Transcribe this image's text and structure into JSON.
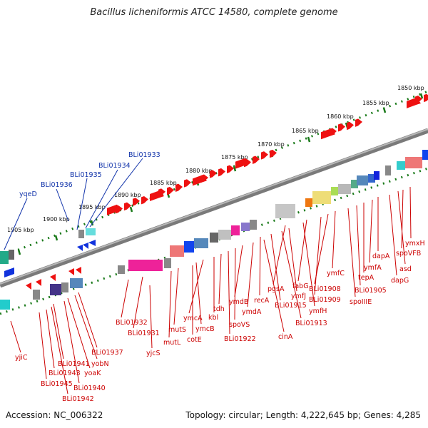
{
  "title": "Bacillus licheniformis ATCC 14580, complete genome",
  "footer": {
    "accession": "Accession: NC_006322",
    "topology": "Topology: circular; Length: 4,222,645 bp; Genes: 4,285"
  },
  "scale_labels": [
    "1850 kbp",
    "1855 kbp",
    "1860 kbp",
    "1865 kbp",
    "1870 kbp",
    "1875 kbp",
    "1880 kbp",
    "1885 kbp",
    "1890 kbp",
    "1895 kbp",
    "1900 kbp",
    "1905 kbp"
  ],
  "top_gene_labels": [
    "BLi01933",
    "BLi01934",
    "BLi01935",
    "BLi01936",
    "yqeD"
  ],
  "bottom_gene_labels": [
    "ymxH",
    "spoVFB",
    "asd",
    "dapG",
    "dapA",
    "ymfA",
    "tepA",
    "BLi01905",
    "spoIIIE",
    "ymfC",
    "BLi01908",
    "BLi01909",
    "fabG",
    "ymfH",
    "pgsA",
    "ymfJ",
    "BLi01913",
    "BLi01915",
    "recA",
    "cinA",
    "ymdA",
    "ymdB",
    "spoVS",
    "BLi01922",
    "tdh",
    "kbl",
    "ymcA",
    "ymcB",
    "cotE",
    "mutS",
    "mutL",
    "BLi01931",
    "BLi01932",
    "yjcS",
    "BLi01937",
    "yobN",
    "yoaK",
    "BLi01940",
    "BLi01941",
    "BLi01942",
    "BLi01943",
    "BLi01945",
    "yjiC"
  ],
  "colors": {
    "forward_genes": "#ee1111",
    "reverse_genes": "#1133dd",
    "label_blue": "#1133aa",
    "label_red": "#cc0000",
    "tick_green": "#1a7a1a",
    "backbone": "#808080"
  }
}
